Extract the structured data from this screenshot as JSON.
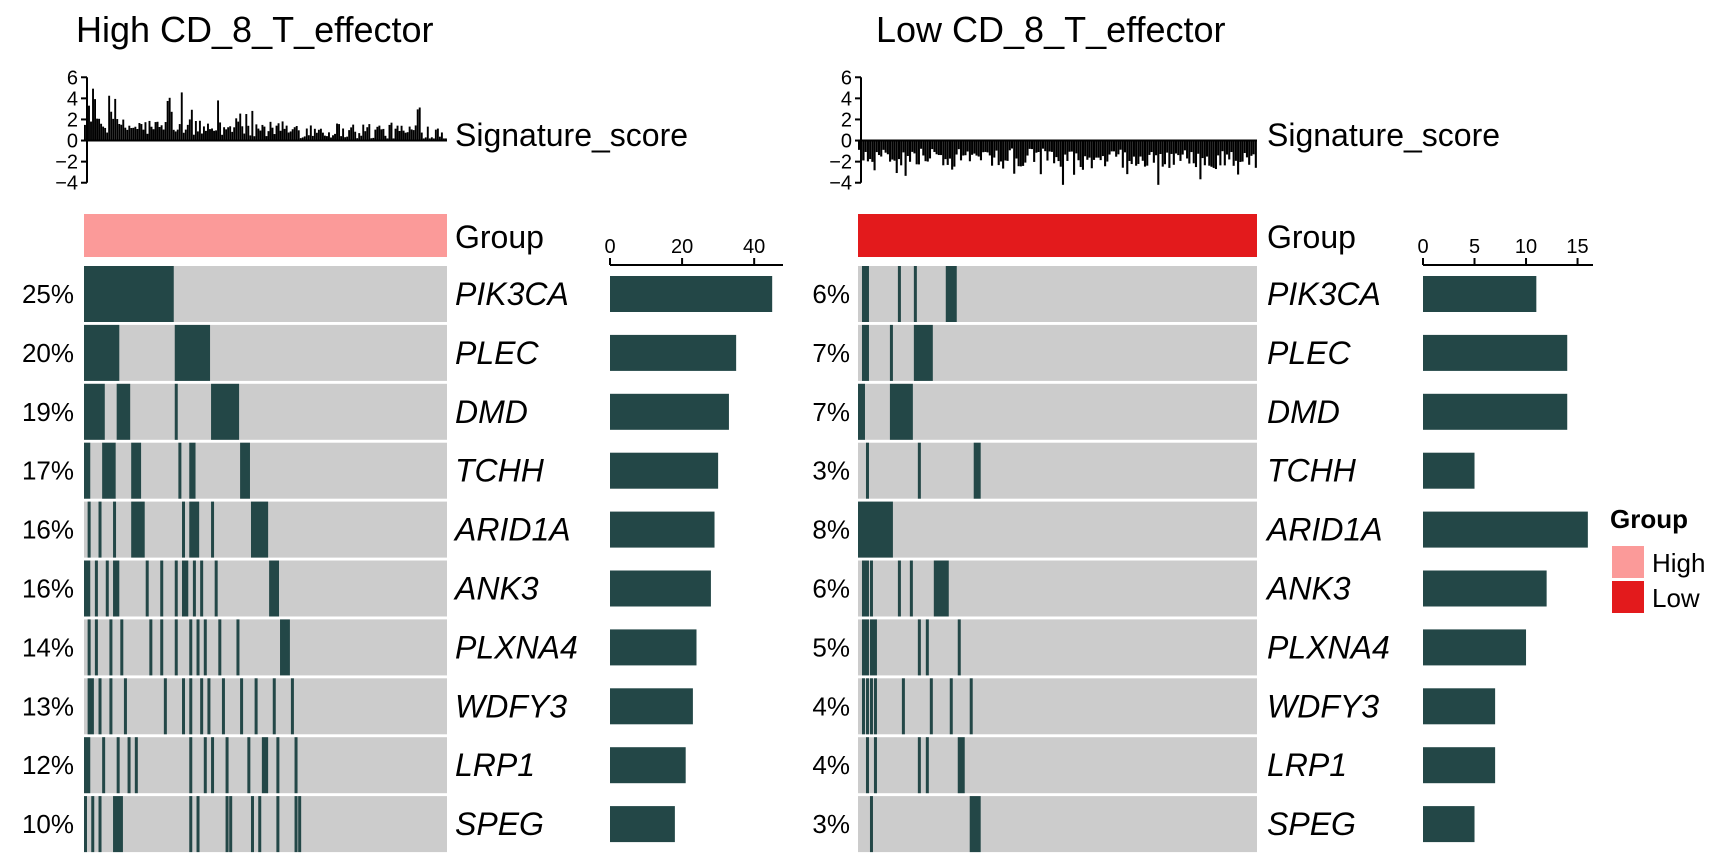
{
  "chart_data": [
    {
      "type": "oncoplot",
      "title": "High CD_8_T_effector",
      "group": "High",
      "group_color": "#FB9A99",
      "score_axis": {
        "label": "Signature_score",
        "ticks": [
          6,
          4,
          2,
          0,
          -2,
          -4
        ],
        "range": [
          -4.5,
          6.5
        ]
      },
      "score_profile": {
        "n_samples": 180,
        "min": 0.2,
        "max": 5.6,
        "typical": 1.8
      },
      "genes": [
        "PIK3CA",
        "PLEC",
        "DMD",
        "TCHH",
        "ARID1A",
        "ANK3",
        "PLXNA4",
        "WDFY3",
        "LRP1",
        "SPEG"
      ],
      "percentages": [
        "25%",
        "20%",
        "19%",
        "17%",
        "16%",
        "16%",
        "14%",
        "13%",
        "12%",
        "10%"
      ],
      "counts": [
        45,
        35,
        33,
        30,
        29,
        28,
        24,
        23,
        21,
        18
      ],
      "count_axis": {
        "ticks": [
          0,
          20,
          40
        ],
        "range": [
          0,
          48
        ]
      },
      "sample_span": 100,
      "mutations": [
        [
          [
            0,
            25
          ]
        ],
        [
          [
            0,
            10
          ],
          [
            25,
            35
          ]
        ],
        [
          [
            0,
            6
          ],
          [
            9,
            13
          ],
          [
            25,
            26
          ],
          [
            35,
            43
          ]
        ],
        [
          [
            0,
            2
          ],
          [
            5,
            9
          ],
          [
            13,
            16
          ],
          [
            26,
            27
          ],
          [
            29,
            31
          ],
          [
            43,
            46
          ]
        ],
        [
          [
            1,
            2
          ],
          [
            4,
            5
          ],
          [
            8,
            9
          ],
          [
            13,
            17
          ],
          [
            27,
            28
          ],
          [
            29,
            32
          ],
          [
            35,
            36
          ],
          [
            46,
            51
          ]
        ],
        [
          [
            0,
            2
          ],
          [
            3,
            4
          ],
          [
            6,
            7
          ],
          [
            8,
            10
          ],
          [
            17,
            18
          ],
          [
            21,
            22
          ],
          [
            25,
            26
          ],
          [
            27,
            29
          ],
          [
            30,
            31
          ],
          [
            32,
            33
          ],
          [
            36,
            37
          ],
          [
            51,
            54
          ]
        ],
        [
          [
            1,
            2
          ],
          [
            3,
            4
          ],
          [
            7,
            8
          ],
          [
            10,
            11
          ],
          [
            18,
            19
          ],
          [
            21,
            22
          ],
          [
            25,
            26
          ],
          [
            29,
            30
          ],
          [
            31,
            32
          ],
          [
            33,
            34
          ],
          [
            37,
            38
          ],
          [
            42,
            43
          ],
          [
            54,
            57
          ]
        ],
        [
          [
            1,
            3
          ],
          [
            4,
            5
          ],
          [
            7,
            8
          ],
          [
            11,
            12
          ],
          [
            22,
            23
          ],
          [
            27,
            28
          ],
          [
            29,
            30
          ],
          [
            32,
            33
          ],
          [
            34,
            35
          ],
          [
            38,
            39
          ],
          [
            43,
            44
          ],
          [
            47,
            48
          ],
          [
            52,
            53
          ],
          [
            57,
            58
          ]
        ],
        [
          [
            0,
            2
          ],
          [
            5,
            6
          ],
          [
            9,
            10
          ],
          [
            12,
            13
          ],
          [
            14,
            15
          ],
          [
            29,
            30
          ],
          [
            33,
            34
          ],
          [
            35,
            36
          ],
          [
            39,
            40
          ],
          [
            45,
            46
          ],
          [
            49,
            51
          ],
          [
            53,
            54
          ],
          [
            58,
            59
          ]
        ],
        [
          [
            0,
            1
          ],
          [
            2,
            3
          ],
          [
            4,
            5
          ],
          [
            8,
            11
          ],
          [
            29,
            30
          ],
          [
            31,
            32
          ],
          [
            39,
            40
          ],
          [
            40,
            41
          ],
          [
            46,
            47
          ],
          [
            48,
            49
          ],
          [
            53,
            54
          ],
          [
            58,
            59
          ],
          [
            59,
            60
          ]
        ]
      ]
    },
    {
      "type": "oncoplot",
      "title": "Low CD_8_T_effector",
      "group": "Low",
      "group_color": "#E31A1C",
      "score_axis": {
        "label": "Signature_score",
        "ticks": [
          6,
          4,
          2,
          0,
          -2,
          -4
        ],
        "range": [
          -4.5,
          6.5
        ]
      },
      "score_profile": {
        "n_samples": 180,
        "min": -4.2,
        "max": -0.4,
        "typical": -2.0
      },
      "genes": [
        "PIK3CA",
        "PLEC",
        "DMD",
        "TCHH",
        "ARID1A",
        "ANK3",
        "PLXNA4",
        "WDFY3",
        "LRP1",
        "SPEG"
      ],
      "percentages": [
        "6%",
        "7%",
        "7%",
        "3%",
        "8%",
        "6%",
        "5%",
        "4%",
        "4%",
        "3%"
      ],
      "counts": [
        11,
        14,
        14,
        5,
        16,
        12,
        10,
        7,
        7,
        5
      ],
      "count_axis": {
        "ticks": [
          0,
          5,
          10,
          15
        ],
        "range": [
          0,
          16.5
        ]
      },
      "sample_span": 100,
      "mutations": [
        [
          [
            1,
            3
          ],
          [
            10,
            11
          ],
          [
            14,
            15
          ],
          [
            22,
            25
          ]
        ],
        [
          [
            1,
            3
          ],
          [
            8,
            9
          ],
          [
            14,
            19
          ]
        ],
        [
          [
            0,
            2
          ],
          [
            8,
            14
          ]
        ],
        [
          [
            2,
            3
          ],
          [
            15,
            16
          ],
          [
            29,
            31
          ]
        ],
        [
          [
            0,
            9
          ]
        ],
        [
          [
            1,
            3
          ],
          [
            3,
            4
          ],
          [
            10,
            11
          ],
          [
            13,
            14
          ],
          [
            19,
            23
          ]
        ],
        [
          [
            1,
            3
          ],
          [
            3,
            5
          ],
          [
            15,
            16
          ],
          [
            17,
            18
          ],
          [
            25,
            26
          ]
        ],
        [
          [
            1,
            2
          ],
          [
            2,
            3
          ],
          [
            3,
            4
          ],
          [
            4,
            5
          ],
          [
            11,
            12
          ],
          [
            18,
            19
          ],
          [
            23,
            24
          ],
          [
            28,
            29
          ]
        ],
        [
          [
            2,
            3
          ],
          [
            4,
            5
          ],
          [
            15,
            16
          ],
          [
            17,
            18
          ],
          [
            25,
            27
          ]
        ],
        [
          [
            3,
            4
          ],
          [
            28,
            31
          ]
        ]
      ]
    }
  ],
  "legend": {
    "title": "Group",
    "items": [
      {
        "label": "High",
        "color": "#FB9A99"
      },
      {
        "label": "Low",
        "color": "#E31A1C"
      }
    ]
  },
  "colors": {
    "mutation": "#234747",
    "background_cell": "#CCCCCC",
    "count_bar": "#234747"
  },
  "group_track_label": "Group"
}
